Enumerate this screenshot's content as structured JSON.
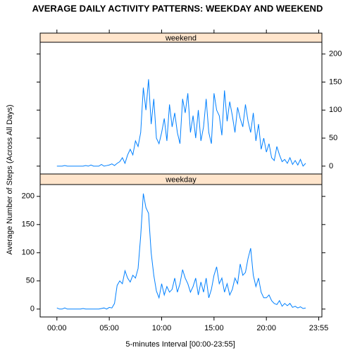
{
  "chart_data": {
    "type": "line",
    "title": "AVERAGE DAILY ACTIVITY PATTERNS: WEEKDAY AND WEEKEND",
    "xlabel": "5-minutes Interval [00:00-23:55]",
    "ylabel": "Average Number of Steps (Across All Days)",
    "x": [
      0,
      0.25,
      0.5,
      0.75,
      1,
      1.25,
      1.5,
      1.75,
      2,
      2.25,
      2.5,
      2.75,
      3,
      3.25,
      3.5,
      3.75,
      4,
      4.25,
      4.5,
      4.75,
      5,
      5.25,
      5.5,
      5.75,
      6,
      6.25,
      6.5,
      6.75,
      7,
      7.25,
      7.5,
      7.75,
      8,
      8.25,
      8.5,
      8.75,
      9,
      9.25,
      9.5,
      9.75,
      10,
      10.25,
      10.5,
      10.75,
      11,
      11.25,
      11.5,
      11.75,
      12,
      12.25,
      12.5,
      12.75,
      13,
      13.25,
      13.5,
      13.75,
      14,
      14.25,
      14.5,
      14.75,
      15,
      15.25,
      15.5,
      15.75,
      16,
      16.25,
      16.5,
      16.75,
      17,
      17.25,
      17.5,
      17.75,
      18,
      18.25,
      18.5,
      18.75,
      19,
      19.25,
      19.5,
      19.75,
      20,
      20.25,
      20.5,
      20.75,
      21,
      21.25,
      21.5,
      21.75,
      22,
      22.25,
      22.5,
      22.75,
      23,
      23.25,
      23.5,
      23.75
    ],
    "series": [
      {
        "name": "weekend",
        "color": "#0080ff",
        "values": [
          0,
          0,
          0,
          1,
          0,
          0,
          0,
          0,
          0,
          0,
          0,
          1,
          0,
          2,
          0,
          0,
          0,
          3,
          0,
          1,
          2,
          4,
          1,
          5,
          8,
          15,
          5,
          20,
          30,
          20,
          45,
          35,
          60,
          140,
          100,
          155,
          75,
          120,
          50,
          40,
          60,
          85,
          45,
          110,
          70,
          95,
          60,
          40,
          120,
          95,
          130,
          60,
          90,
          50,
          100,
          45,
          70,
          120,
          60,
          40,
          130,
          100,
          90,
          55,
          135,
          80,
          115,
          90,
          60,
          105,
          85,
          70,
          110,
          80,
          60,
          95,
          45,
          75,
          30,
          50,
          25,
          40,
          15,
          10,
          35,
          20,
          8,
          12,
          5,
          15,
          3,
          10,
          2,
          12,
          0,
          5
        ]
      },
      {
        "name": "weekday",
        "color": "#0080ff",
        "values": [
          2,
          0,
          0,
          2,
          0,
          0,
          0,
          0,
          0,
          0,
          1,
          0,
          0,
          0,
          0,
          0,
          0,
          1,
          2,
          0,
          3,
          2,
          10,
          42,
          50,
          45,
          68,
          55,
          48,
          60,
          55,
          72,
          130,
          205,
          180,
          170,
          100,
          60,
          32,
          20,
          45,
          25,
          40,
          30,
          35,
          55,
          30,
          45,
          70,
          55,
          45,
          30,
          40,
          55,
          25,
          48,
          30,
          55,
          20,
          35,
          60,
          75,
          45,
          55,
          30,
          45,
          25,
          35,
          55,
          45,
          80,
          60,
          65,
          90,
          108,
          60,
          40,
          55,
          30,
          20,
          20,
          25,
          15,
          10,
          8,
          15,
          5,
          10,
          6,
          10,
          3,
          5,
          2,
          4,
          1,
          2
        ]
      }
    ],
    "xlim": [
      -1.6,
      25.3
    ],
    "xticks": [
      {
        "value": 0,
        "label": "00:00"
      },
      {
        "value": 5,
        "label": "05:00"
      },
      {
        "value": 10,
        "label": "10:00"
      },
      {
        "value": 15,
        "label": "15:00"
      },
      {
        "value": 20,
        "label": "20:00"
      },
      {
        "value": 25,
        "label": "23:55"
      }
    ],
    "ylim": [
      -14,
      221
    ],
    "yticks": [
      0,
      50,
      100,
      150,
      200
    ]
  }
}
